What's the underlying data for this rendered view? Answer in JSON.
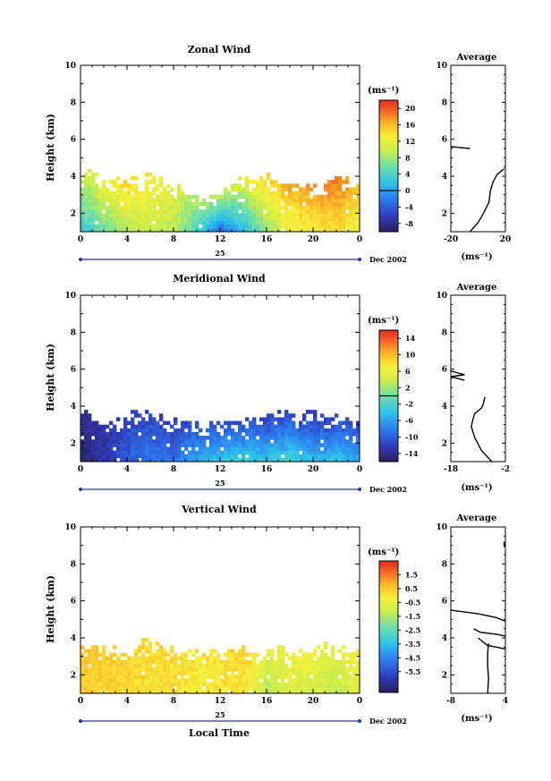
{
  "chart_data": [
    {
      "type": "heatmap",
      "title": "Zonal Wind",
      "ylabel": "Height (km)",
      "ylim": [
        1,
        10
      ],
      "xlim": [
        0,
        24
      ],
      "x_ticks": [
        "0",
        "4",
        "8",
        "12",
        "16",
        "20",
        "0"
      ],
      "y_ticks": [
        "2",
        "4",
        "6",
        "8",
        "10"
      ],
      "day_label": "25",
      "date_label": "Dec 2002",
      "colorbar": {
        "unit": "(ms⁻¹)",
        "range": [
          -10,
          22
        ],
        "ticks": [
          "20",
          "16",
          "12",
          "8",
          "4",
          "0",
          "-4",
          "-8"
        ],
        "tick_values": [
          20,
          16,
          12,
          8,
          4,
          0,
          -4,
          -8
        ],
        "contour_level": 0
      },
      "profile": {
        "title": "Average",
        "xlabel": "(ms⁻¹)",
        "xlim": [
          -20,
          20
        ],
        "x_ticks": [
          "-20",
          "20"
        ],
        "y_ticks": [
          "2",
          "4",
          "6",
          "8",
          "10"
        ],
        "segments": [
          [
            [
              -20,
              5.6
            ],
            [
              -6,
              5.5
            ]
          ],
          [
            [
              -6,
              1.0
            ],
            [
              0,
              1.5
            ],
            [
              4,
              2.0
            ],
            [
              8,
              2.6
            ],
            [
              9,
              3.2
            ],
            [
              11,
              3.7
            ],
            [
              14,
              4.1
            ],
            [
              19,
              4.4
            ]
          ]
        ]
      },
      "field_summary": {
        "hours": [
          0,
          2,
          4,
          6,
          8,
          10,
          12,
          14,
          16,
          18,
          20,
          22,
          24
        ],
        "top_km": [
          4.2,
          3.6,
          3.7,
          3.9,
          3.3,
          2.7,
          3.1,
          3.8,
          3.8,
          3.6,
          3.3,
          3.9,
          3.5
        ],
        "low_level_ms": [
          3,
          6,
          9,
          10,
          9,
          4,
          -3,
          2,
          8,
          12,
          13,
          14,
          12
        ],
        "upper_level_ms": [
          10,
          13,
          15,
          13,
          11,
          9,
          10,
          12,
          15,
          17,
          18,
          19,
          15
        ]
      }
    },
    {
      "type": "heatmap",
      "title": "Meridional Wind",
      "ylabel": "Height (km)",
      "ylim": [
        1,
        10
      ],
      "xlim": [
        0,
        24
      ],
      "x_ticks": [
        "0",
        "4",
        "8",
        "12",
        "16",
        "20",
        "0"
      ],
      "y_ticks": [
        "2",
        "4",
        "6",
        "8",
        "10"
      ],
      "day_label": "25",
      "date_label": "Dec 2002",
      "colorbar": {
        "unit": "(ms⁻¹)",
        "range": [
          -16,
          16
        ],
        "ticks": [
          "14",
          "10",
          "6",
          "2",
          "-2",
          "-6",
          "-10",
          "-14"
        ],
        "tick_values": [
          14,
          10,
          6,
          2,
          -2,
          -6,
          -10,
          -14
        ],
        "contour_level": 0
      },
      "profile": {
        "title": "Average",
        "xlabel": "(ms⁻¹)",
        "xlim": [
          -18,
          -2
        ],
        "x_ticks": [
          "-18",
          "-2"
        ],
        "y_ticks": [
          "2",
          "4",
          "6",
          "8",
          "10"
        ],
        "segments": [
          [
            [
              -18,
              5.9
            ],
            [
              -14,
              5.7
            ],
            [
              -18,
              5.6
            ],
            [
              -14,
              5.4
            ]
          ],
          [
            [
              -6,
              1.0
            ],
            [
              -9,
              1.6
            ],
            [
              -11,
              2.3
            ],
            [
              -12,
              2.9
            ],
            [
              -11.5,
              3.3
            ],
            [
              -11,
              3.6
            ],
            [
              -9,
              3.9
            ],
            [
              -8.5,
              4.1
            ],
            [
              -8,
              4.5
            ]
          ]
        ]
      },
      "field_summary": {
        "hours": [
          0,
          2,
          4,
          6,
          8,
          10,
          12,
          14,
          16,
          18,
          20,
          22,
          24
        ],
        "top_km": [
          3.9,
          3.1,
          3.5,
          3.4,
          3.2,
          2.8,
          3.0,
          3.2,
          3.8,
          3.6,
          3.6,
          3.4,
          3.3
        ],
        "low_level_ms": [
          -15,
          -13,
          -10,
          -8,
          -9,
          -5,
          -4,
          -3,
          -4,
          -2,
          -5,
          -4,
          -6
        ],
        "upper_level_ms": [
          -14,
          -13,
          -12,
          -12,
          -12,
          -11,
          -11,
          -12,
          -13,
          -12,
          -13,
          -12,
          -12
        ]
      }
    },
    {
      "type": "heatmap",
      "title": "Vertical Wind",
      "ylabel": "Height (km)",
      "xlabel": "Local Time",
      "ylim": [
        1,
        10
      ],
      "xlim": [
        0,
        24
      ],
      "x_ticks": [
        "0",
        "4",
        "8",
        "12",
        "16",
        "20",
        "0"
      ],
      "y_ticks": [
        "2",
        "4",
        "6",
        "8",
        "10"
      ],
      "day_label": "25",
      "date_label": "Dec 2002",
      "colorbar": {
        "unit": "(ms⁻¹)",
        "range": [
          -7,
          2.5
        ],
        "ticks": [
          "1.5",
          "0.5",
          "-0.5",
          "-1.5",
          "-2.5",
          "-3.5",
          "-4.5",
          "-5.5"
        ],
        "tick_values": [
          1.5,
          0.5,
          -0.5,
          -1.5,
          -2.5,
          -3.5,
          -4.5,
          -5.5
        ]
      },
      "profile": {
        "title": "Average",
        "xlabel": "(ms⁻¹)",
        "xlim": [
          -8,
          4
        ],
        "x_ticks": [
          "-8",
          "4"
        ],
        "y_ticks": [
          "2",
          "4",
          "6",
          "8",
          "10"
        ],
        "segments": [
          [
            [
              -8,
              5.5
            ],
            [
              -2,
              5.3
            ],
            [
              2,
              5.1
            ],
            [
              4,
              4.9
            ]
          ],
          [
            [
              -3,
              4.5
            ],
            [
              -1.5,
              4.3
            ],
            [
              2,
              4.2
            ],
            [
              4,
              4.1
            ]
          ],
          [
            [
              -2,
              4.0
            ],
            [
              0,
              3.6
            ],
            [
              2,
              3.5
            ],
            [
              4,
              3.4
            ]
          ],
          [
            [
              0.3,
              3.7
            ],
            [
              0.1,
              3.2
            ],
            [
              0.1,
              2.5
            ],
            [
              0.3,
              1.8
            ],
            [
              0.1,
              1.0
            ]
          ],
          [
            [
              3.7,
              9.2
            ],
            [
              3.8,
              8.9
            ]
          ]
        ]
      },
      "field_summary": {
        "hours": [
          0,
          2,
          4,
          6,
          8,
          10,
          12,
          14,
          16,
          18,
          20,
          22,
          24
        ],
        "top_km": [
          3.7,
          3.3,
          3.5,
          3.7,
          3.3,
          3.2,
          3.4,
          3.3,
          3.3,
          3.3,
          3.3,
          3.5,
          3.5
        ],
        "low_level_ms": [
          0.4,
          0.3,
          0.2,
          0.0,
          0.1,
          -0.2,
          0.0,
          0.1,
          -1.5,
          -0.8,
          -0.9,
          -1.2,
          -0.5
        ],
        "upper_level_ms": [
          0.6,
          0.4,
          0.3,
          0.2,
          0.2,
          0.0,
          0.2,
          0.3,
          -0.6,
          -0.3,
          -0.4,
          -0.6,
          0.0
        ]
      }
    }
  ]
}
